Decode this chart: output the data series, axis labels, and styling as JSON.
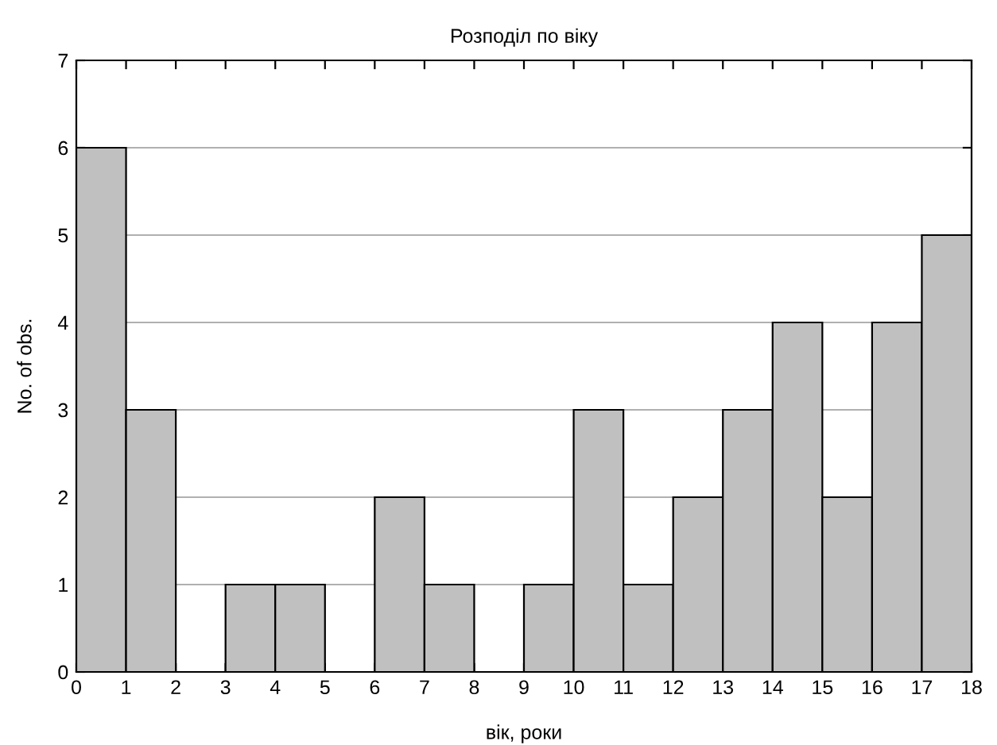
{
  "chart_data": {
    "type": "histogram",
    "title": "Розподіл по віку",
    "xlabel": "вік, роки",
    "ylabel": "No. of obs.",
    "bins": [
      0,
      1,
      2,
      3,
      4,
      5,
      6,
      7,
      8,
      9,
      10,
      11,
      12,
      13,
      14,
      15,
      16,
      17,
      18
    ],
    "values": [
      6,
      3,
      0,
      1,
      1,
      0,
      2,
      1,
      0,
      1,
      3,
      1,
      2,
      3,
      4,
      2,
      4,
      5
    ],
    "color": "#c0c0c0",
    "xlim": [
      0,
      18
    ],
    "xticks": [
      0,
      1,
      2,
      3,
      4,
      5,
      6,
      7,
      8,
      9,
      10,
      11,
      12,
      13,
      14,
      15,
      16,
      17,
      18
    ],
    "ylim": [
      0,
      7
    ],
    "yticks": [
      0,
      1,
      2,
      3,
      4,
      5,
      6,
      7
    ],
    "grid": "y"
  }
}
